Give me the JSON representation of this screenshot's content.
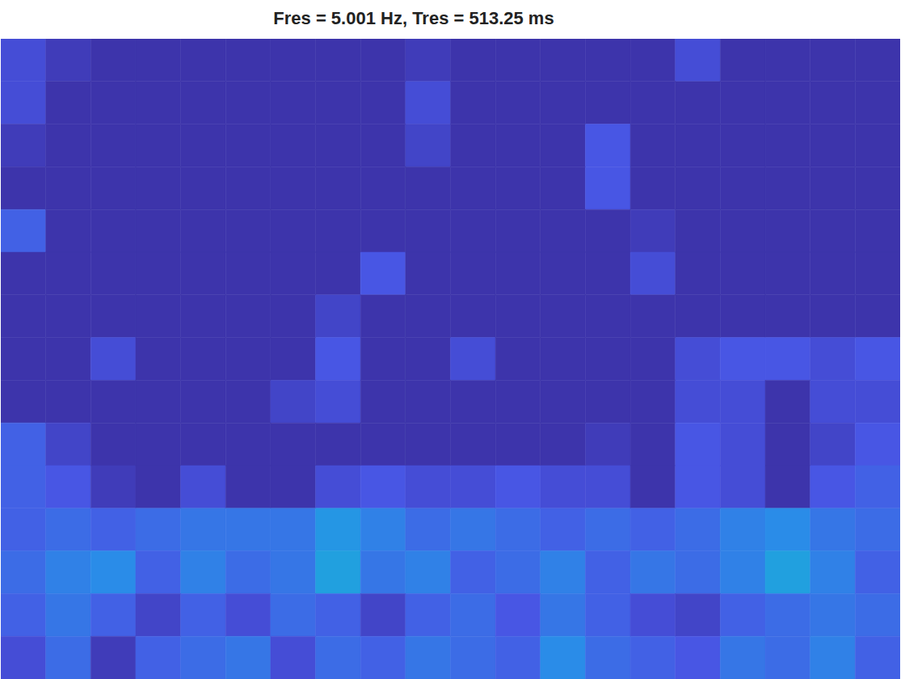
{
  "chart_data": {
    "type": "heatmap",
    "title": "Fres = 5.001 Hz, Tres = 513.25 ms",
    "xlim": [
      0,
      20
    ],
    "ylim": [
      0,
      15
    ],
    "tick_labels": false,
    "color_range": [
      0,
      1
    ],
    "cells": [
      [
        0.2,
        0.1,
        0.05,
        0.05,
        0.05,
        0.05,
        0.05,
        0.05,
        0.05,
        0.1,
        0.05,
        0.05,
        0.05,
        0.05,
        0.05,
        0.2,
        0.05,
        0.05,
        0.05,
        0.05
      ],
      [
        0.2,
        0.05,
        0.05,
        0.05,
        0.05,
        0.05,
        0.05,
        0.05,
        0.05,
        0.2,
        0.05,
        0.05,
        0.05,
        0.05,
        0.05,
        0.05,
        0.05,
        0.05,
        0.05,
        0.05
      ],
      [
        0.1,
        0.05,
        0.05,
        0.05,
        0.05,
        0.05,
        0.05,
        0.05,
        0.05,
        0.15,
        0.05,
        0.05,
        0.05,
        0.25,
        0.05,
        0.05,
        0.05,
        0.05,
        0.05,
        0.05
      ],
      [
        0.05,
        0.05,
        0.05,
        0.05,
        0.05,
        0.05,
        0.05,
        0.05,
        0.05,
        0.05,
        0.05,
        0.05,
        0.05,
        0.25,
        0.05,
        0.05,
        0.05,
        0.05,
        0.05,
        0.05
      ],
      [
        0.3,
        0.05,
        0.05,
        0.05,
        0.05,
        0.05,
        0.05,
        0.05,
        0.05,
        0.05,
        0.05,
        0.05,
        0.05,
        0.05,
        0.1,
        0.05,
        0.05,
        0.05,
        0.05,
        0.05
      ],
      [
        0.05,
        0.05,
        0.05,
        0.05,
        0.05,
        0.05,
        0.05,
        0.05,
        0.25,
        0.05,
        0.05,
        0.05,
        0.05,
        0.05,
        0.2,
        0.05,
        0.05,
        0.05,
        0.05,
        0.05
      ],
      [
        0.05,
        0.05,
        0.05,
        0.05,
        0.05,
        0.05,
        0.05,
        0.15,
        0.05,
        0.05,
        0.05,
        0.05,
        0.05,
        0.05,
        0.05,
        0.05,
        0.05,
        0.05,
        0.05,
        0.05
      ],
      [
        0.05,
        0.05,
        0.2,
        0.05,
        0.05,
        0.05,
        0.05,
        0.25,
        0.05,
        0.05,
        0.2,
        0.05,
        0.05,
        0.05,
        0.05,
        0.2,
        0.25,
        0.25,
        0.2,
        0.25
      ],
      [
        0.05,
        0.05,
        0.05,
        0.05,
        0.05,
        0.05,
        0.15,
        0.2,
        0.05,
        0.05,
        0.05,
        0.05,
        0.05,
        0.05,
        0.05,
        0.2,
        0.2,
        0.05,
        0.2,
        0.2
      ],
      [
        0.3,
        0.15,
        0.05,
        0.05,
        0.05,
        0.05,
        0.05,
        0.05,
        0.05,
        0.05,
        0.05,
        0.05,
        0.05,
        0.1,
        0.05,
        0.25,
        0.2,
        0.05,
        0.15,
        0.25
      ],
      [
        0.3,
        0.25,
        0.1,
        0.05,
        0.2,
        0.05,
        0.05,
        0.2,
        0.25,
        0.2,
        0.2,
        0.25,
        0.2,
        0.2,
        0.05,
        0.25,
        0.2,
        0.05,
        0.25,
        0.3
      ],
      [
        0.3,
        0.35,
        0.3,
        0.35,
        0.4,
        0.4,
        0.4,
        0.55,
        0.45,
        0.35,
        0.4,
        0.35,
        0.3,
        0.35,
        0.3,
        0.35,
        0.45,
        0.5,
        0.4,
        0.35
      ],
      [
        0.35,
        0.45,
        0.5,
        0.3,
        0.45,
        0.35,
        0.4,
        0.6,
        0.4,
        0.45,
        0.3,
        0.35,
        0.45,
        0.3,
        0.4,
        0.35,
        0.45,
        0.6,
        0.45,
        0.3
      ],
      [
        0.3,
        0.4,
        0.3,
        0.15,
        0.3,
        0.2,
        0.35,
        0.3,
        0.15,
        0.3,
        0.35,
        0.25,
        0.4,
        0.3,
        0.2,
        0.15,
        0.3,
        0.35,
        0.4,
        0.35
      ],
      [
        0.2,
        0.35,
        0.1,
        0.3,
        0.35,
        0.4,
        0.2,
        0.35,
        0.3,
        0.4,
        0.35,
        0.3,
        0.5,
        0.35,
        0.3,
        0.25,
        0.4,
        0.35,
        0.45,
        0.3
      ]
    ]
  }
}
